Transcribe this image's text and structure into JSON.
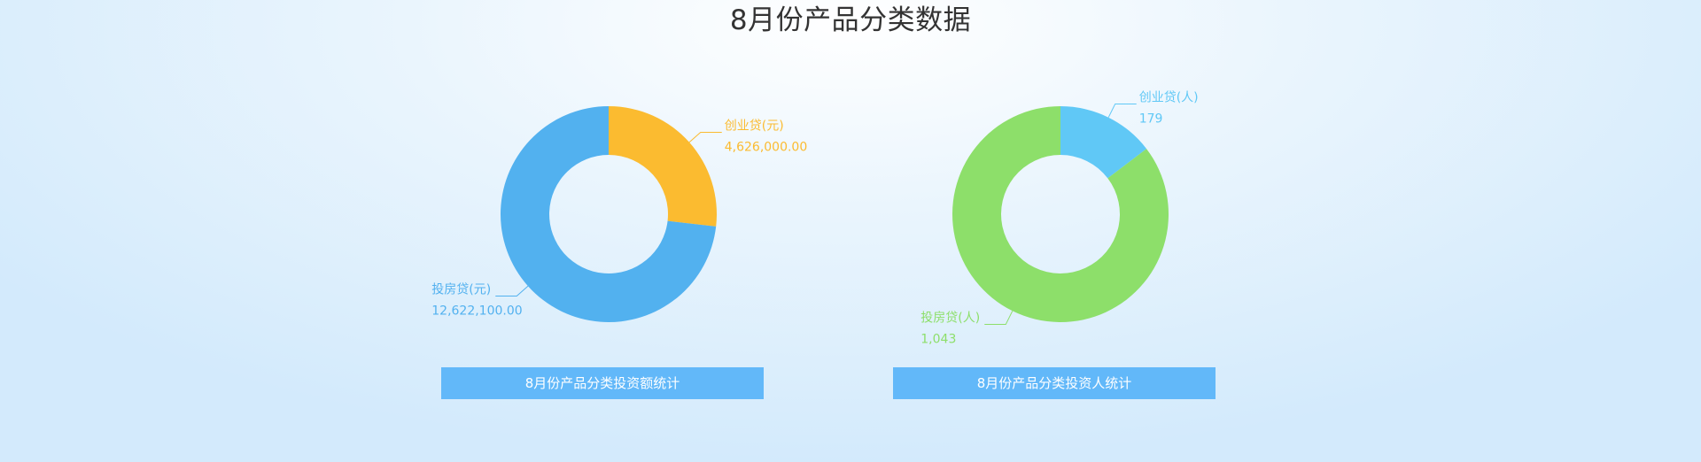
{
  "page_title": "8月份产品分类数据",
  "chart_data": [
    {
      "type": "pie",
      "caption": "8月份产品分类投资额统计",
      "caption_color": "#62b8f9",
      "series": [
        {
          "name": "创业贷(元)",
          "value": 4626000,
          "display": "4,626,000.00",
          "color": "#fbbb30"
        },
        {
          "name": "投房贷(元)",
          "value": 12622100,
          "display": "12,622,100.00",
          "color": "#52b1ef"
        }
      ]
    },
    {
      "type": "pie",
      "caption": "8月份产品分类投资人统计",
      "caption_color": "#62b8f9",
      "series": [
        {
          "name": "创业贷(人)",
          "value": 179,
          "display": "179",
          "color": "#60c8f6"
        },
        {
          "name": "投房贷(人)",
          "value": 1043,
          "display": "1,043",
          "color": "#8ddf6a"
        }
      ]
    }
  ]
}
